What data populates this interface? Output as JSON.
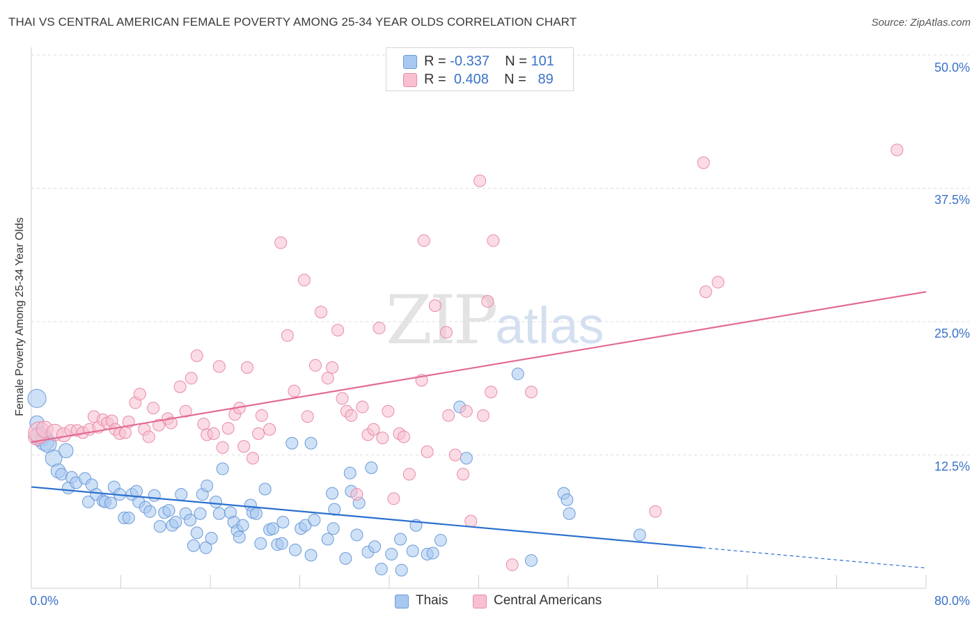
{
  "header": {
    "title": "THAI VS CENTRAL AMERICAN FEMALE POVERTY AMONG 25-34 YEAR OLDS CORRELATION CHART",
    "source": "Source: ZipAtlas.com"
  },
  "watermark": {
    "zip": "ZIP",
    "atlas": "atlas"
  },
  "legend_top": [
    {
      "r_label": "R =",
      "r_value": "-0.337",
      "n_label": "N =",
      "n_value": "101",
      "color": "#a8c8f0",
      "border": "#6a9ad8"
    },
    {
      "r_label": "R =",
      "r_value": "0.408",
      "n_label": "N =",
      "n_value": "89",
      "color": "#f8c0d0",
      "border": "#e88aa8"
    }
  ],
  "legend_bottom": [
    {
      "label": "Thais",
      "color": "#a8c8f0",
      "border": "#6a9ad8"
    },
    {
      "label": "Central Americans",
      "color": "#f8c0d0",
      "border": "#e88aa8"
    }
  ],
  "axis_labels": {
    "x_min": "0.0%",
    "x_max": "80.0%",
    "y_ticks": [
      "12.5%",
      "25.0%",
      "37.5%",
      "50.0%"
    ]
  },
  "chart_data": {
    "type": "scatter",
    "title": "THAI VS CENTRAL AMERICAN FEMALE POVERTY AMONG 25-34 YEAR OLDS CORRELATION CHART",
    "xlabel": "",
    "ylabel": "Female Poverty Among 25-34 Year Olds",
    "xlim": [
      0,
      80
    ],
    "ylim": [
      0,
      50
    ],
    "y_ticks": [
      12.5,
      25.0,
      37.5,
      50.0
    ],
    "grid": true,
    "legend_position": "top-center",
    "series": [
      {
        "name": "Thais",
        "color": "#6a9ad8",
        "fill": "#a8c8f0",
        "trend": {
          "x0": 0,
          "y0": 9.5,
          "x1": 60,
          "y1": 3.8,
          "dashed_to_x": 80,
          "dashed_y": 1.9,
          "color": "#2c6fcf"
        },
        "points": [
          [
            0.5,
            17.8,
            1.4
          ],
          [
            0.5,
            15.5,
            1.1
          ],
          [
            0.8,
            14.2,
            0.8
          ],
          [
            1.2,
            13.8,
            0.8
          ],
          [
            1.5,
            13.5,
            0.7
          ],
          [
            2.0,
            12.2,
            0.7
          ],
          [
            3.1,
            12.9,
            0.6
          ],
          [
            2.4,
            11.0,
            0.6
          ],
          [
            2.7,
            10.7,
            0.5
          ],
          [
            3.3,
            9.4,
            0.5
          ],
          [
            3.6,
            10.4,
            0.5
          ],
          [
            4.0,
            9.9,
            0.5
          ],
          [
            4.8,
            10.3,
            0.5
          ],
          [
            5.4,
            9.7,
            0.5
          ],
          [
            5.1,
            8.1,
            0.5
          ],
          [
            5.8,
            8.8,
            0.5
          ],
          [
            6.4,
            8.2,
            0.5
          ],
          [
            6.6,
            8.1,
            0.5
          ],
          [
            7.1,
            8.0,
            0.5
          ],
          [
            7.4,
            9.5,
            0.5
          ],
          [
            7.9,
            8.8,
            0.5
          ],
          [
            8.3,
            6.6,
            0.5
          ],
          [
            8.7,
            6.6,
            0.5
          ],
          [
            9.0,
            8.8,
            0.5
          ],
          [
            9.4,
            9.1,
            0.5
          ],
          [
            9.6,
            8.1,
            0.5
          ],
          [
            10.2,
            7.6,
            0.5
          ],
          [
            10.6,
            7.2,
            0.5
          ],
          [
            11.0,
            8.7,
            0.5
          ],
          [
            11.5,
            5.8,
            0.5
          ],
          [
            11.9,
            7.1,
            0.5
          ],
          [
            12.3,
            7.3,
            0.5
          ],
          [
            12.6,
            5.9,
            0.5
          ],
          [
            12.9,
            6.2,
            0.5
          ],
          [
            13.4,
            8.8,
            0.5
          ],
          [
            13.8,
            7.0,
            0.5
          ],
          [
            14.2,
            6.4,
            0.5
          ],
          [
            14.5,
            4.0,
            0.5
          ],
          [
            14.8,
            5.2,
            0.5
          ],
          [
            15.1,
            7.0,
            0.5
          ],
          [
            15.3,
            8.8,
            0.5
          ],
          [
            15.7,
            9.6,
            0.5
          ],
          [
            15.6,
            3.8,
            0.5
          ],
          [
            16.1,
            4.7,
            0.5
          ],
          [
            16.5,
            8.1,
            0.5
          ],
          [
            16.8,
            7.0,
            0.5
          ],
          [
            17.1,
            11.2,
            0.5
          ],
          [
            17.8,
            7.1,
            0.5
          ],
          [
            18.1,
            6.2,
            0.5
          ],
          [
            18.4,
            5.4,
            0.5
          ],
          [
            18.6,
            4.8,
            0.5
          ],
          [
            18.9,
            5.9,
            0.5
          ],
          [
            19.6,
            7.8,
            0.5
          ],
          [
            19.8,
            7.1,
            0.5
          ],
          [
            20.1,
            7.0,
            0.5
          ],
          [
            20.5,
            4.2,
            0.5
          ],
          [
            20.9,
            9.3,
            0.5
          ],
          [
            21.3,
            5.5,
            0.5
          ],
          [
            21.6,
            5.6,
            0.5
          ],
          [
            22.0,
            4.1,
            0.5
          ],
          [
            22.4,
            4.2,
            0.5
          ],
          [
            22.5,
            6.2,
            0.5
          ],
          [
            23.3,
            13.6,
            0.5
          ],
          [
            23.6,
            3.6,
            0.5
          ],
          [
            24.1,
            5.6,
            0.5
          ],
          [
            24.5,
            5.9,
            0.5
          ],
          [
            25.0,
            13.6,
            0.5
          ],
          [
            25.0,
            3.1,
            0.5
          ],
          [
            25.3,
            6.4,
            0.5
          ],
          [
            26.5,
            4.6,
            0.5
          ],
          [
            26.9,
            8.9,
            0.5
          ],
          [
            27.0,
            5.6,
            0.5
          ],
          [
            27.1,
            7.4,
            0.5
          ],
          [
            28.1,
            2.8,
            0.5
          ],
          [
            28.5,
            10.8,
            0.5
          ],
          [
            28.6,
            9.1,
            0.5
          ],
          [
            29.1,
            5.0,
            0.5
          ],
          [
            29.3,
            8.0,
            0.5
          ],
          [
            30.1,
            3.4,
            0.5
          ],
          [
            30.4,
            11.3,
            0.5
          ],
          [
            30.7,
            3.9,
            0.5
          ],
          [
            31.3,
            1.8,
            0.5
          ],
          [
            32.2,
            3.2,
            0.5
          ],
          [
            33.0,
            4.6,
            0.5
          ],
          [
            33.1,
            1.7,
            0.5
          ],
          [
            34.1,
            3.5,
            0.5
          ],
          [
            34.4,
            5.9,
            0.5
          ],
          [
            35.4,
            3.2,
            0.5
          ],
          [
            35.9,
            3.3,
            0.5
          ],
          [
            36.6,
            4.5,
            0.5
          ],
          [
            38.3,
            17.0,
            0.5
          ],
          [
            38.9,
            12.2,
            0.5
          ],
          [
            43.5,
            20.1,
            0.5
          ],
          [
            44.7,
            2.6,
            0.5
          ],
          [
            47.6,
            8.9,
            0.5
          ],
          [
            47.9,
            8.3,
            0.5
          ],
          [
            48.1,
            7.0,
            0.5
          ],
          [
            54.4,
            5.0,
            0.5
          ]
        ]
      },
      {
        "name": "Central Americans",
        "color": "#e88aa8",
        "fill": "#f8c0d0",
        "trend": {
          "x0": 0,
          "y0": 13.7,
          "x1": 80,
          "y1": 27.8,
          "color": "#e26b93"
        },
        "points": [
          [
            0.5,
            14.2,
            1.3
          ],
          [
            0.7,
            14.6,
            0.9
          ],
          [
            1.2,
            14.9,
            0.7
          ],
          [
            2.1,
            14.6,
            0.7
          ],
          [
            2.9,
            14.4,
            0.6
          ],
          [
            3.5,
            14.8,
            0.5
          ],
          [
            4.1,
            14.8,
            0.5
          ],
          [
            4.6,
            14.6,
            0.5
          ],
          [
            5.2,
            14.9,
            0.5
          ],
          [
            5.6,
            16.1,
            0.5
          ],
          [
            6.0,
            15.1,
            0.5
          ],
          [
            6.4,
            15.8,
            0.5
          ],
          [
            6.8,
            15.5,
            0.5
          ],
          [
            7.2,
            15.7,
            0.5
          ],
          [
            7.5,
            14.9,
            0.5
          ],
          [
            7.9,
            14.5,
            0.5
          ],
          [
            8.4,
            14.6,
            0.5
          ],
          [
            8.7,
            15.6,
            0.5
          ],
          [
            9.3,
            17.4,
            0.5
          ],
          [
            9.7,
            18.2,
            0.5
          ],
          [
            10.1,
            14.9,
            0.5
          ],
          [
            10.5,
            14.2,
            0.5
          ],
          [
            10.9,
            16.9,
            0.5
          ],
          [
            11.4,
            15.3,
            0.5
          ],
          [
            12.2,
            15.9,
            0.5
          ],
          [
            12.5,
            15.5,
            0.5
          ],
          [
            13.3,
            18.9,
            0.5
          ],
          [
            13.8,
            16.6,
            0.5
          ],
          [
            14.3,
            19.7,
            0.5
          ],
          [
            14.8,
            21.8,
            0.5
          ],
          [
            15.4,
            15.4,
            0.5
          ],
          [
            15.7,
            14.4,
            0.5
          ],
          [
            16.3,
            14.5,
            0.5
          ],
          [
            16.8,
            20.8,
            0.5
          ],
          [
            17.1,
            13.2,
            0.5
          ],
          [
            17.6,
            15.0,
            0.5
          ],
          [
            18.2,
            16.3,
            0.5
          ],
          [
            18.6,
            16.9,
            0.5
          ],
          [
            19.0,
            13.3,
            0.5
          ],
          [
            19.3,
            20.7,
            0.5
          ],
          [
            19.8,
            12.2,
            0.5
          ],
          [
            20.3,
            14.5,
            0.5
          ],
          [
            20.6,
            16.2,
            0.5
          ],
          [
            21.3,
            14.9,
            0.5
          ],
          [
            22.3,
            32.4,
            0.5
          ],
          [
            22.9,
            23.7,
            0.5
          ],
          [
            23.5,
            18.5,
            0.5
          ],
          [
            24.4,
            28.9,
            0.5
          ],
          [
            24.7,
            16.1,
            0.5
          ],
          [
            25.4,
            20.9,
            0.5
          ],
          [
            25.9,
            25.9,
            0.5
          ],
          [
            26.5,
            19.7,
            0.5
          ],
          [
            26.9,
            20.7,
            0.5
          ],
          [
            27.4,
            24.2,
            0.5
          ],
          [
            27.8,
            17.8,
            0.5
          ],
          [
            28.2,
            16.6,
            0.5
          ],
          [
            28.6,
            16.2,
            0.5
          ],
          [
            29.1,
            8.8,
            0.5
          ],
          [
            29.6,
            17.0,
            0.5
          ],
          [
            30.1,
            14.4,
            0.5
          ],
          [
            30.6,
            14.9,
            0.5
          ],
          [
            31.1,
            24.4,
            0.5
          ],
          [
            31.4,
            14.1,
            0.5
          ],
          [
            31.9,
            16.6,
            0.5
          ],
          [
            32.4,
            8.4,
            0.5
          ],
          [
            32.9,
            14.5,
            0.5
          ],
          [
            33.3,
            14.2,
            0.5
          ],
          [
            33.8,
            10.7,
            0.5
          ],
          [
            34.9,
            19.5,
            0.5
          ],
          [
            35.1,
            32.6,
            0.5
          ],
          [
            35.4,
            12.8,
            0.5
          ],
          [
            36.1,
            26.5,
            0.5
          ],
          [
            37.1,
            24.0,
            0.5
          ],
          [
            37.3,
            16.2,
            0.5
          ],
          [
            37.9,
            12.5,
            0.5
          ],
          [
            38.6,
            10.7,
            0.5
          ],
          [
            38.9,
            16.6,
            0.5
          ],
          [
            39.3,
            6.3,
            0.5
          ],
          [
            40.1,
            38.2,
            0.5
          ],
          [
            40.4,
            16.2,
            0.5
          ],
          [
            40.8,
            26.9,
            0.5
          ],
          [
            41.1,
            18.4,
            0.5
          ],
          [
            41.3,
            32.6,
            0.5
          ],
          [
            43.0,
            2.2,
            0.5
          ],
          [
            44.7,
            18.4,
            0.5
          ],
          [
            55.8,
            7.2,
            0.5
          ],
          [
            60.1,
            39.9,
            0.5
          ],
          [
            60.3,
            27.8,
            0.5
          ],
          [
            61.4,
            28.7,
            0.5
          ],
          [
            77.4,
            41.1,
            0.5
          ]
        ]
      }
    ]
  }
}
